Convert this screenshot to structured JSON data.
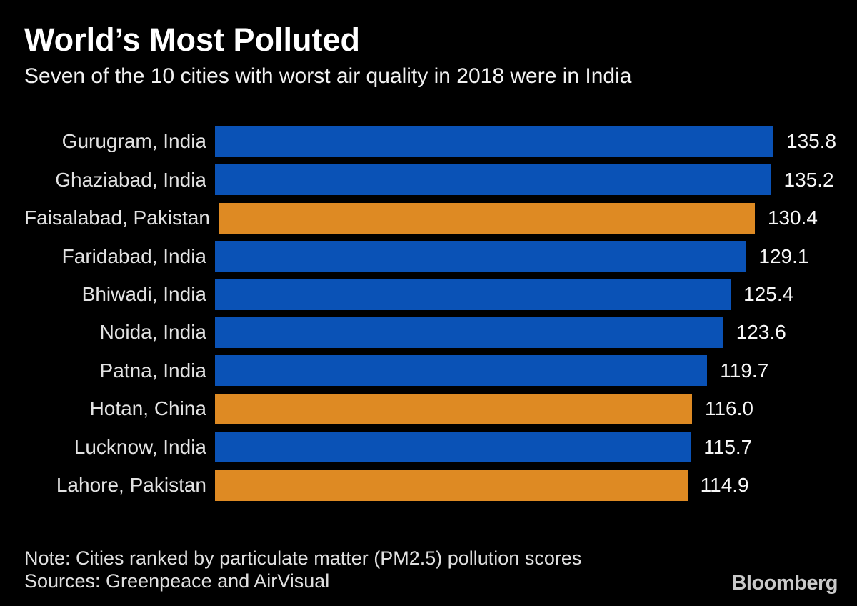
{
  "header": {
    "title": "World’s Most Polluted",
    "subtitle": "Seven of the 10 cities with worst air quality in 2018 were in India"
  },
  "chart_data": {
    "type": "bar",
    "orientation": "horizontal",
    "title": "World’s Most Polluted",
    "subtitle": "Seven of the 10 cities with worst air quality in 2018 were in India",
    "xlim": [
      0,
      135.8
    ],
    "grid": false,
    "legend": false,
    "value_labels_position": "end-of-bar",
    "colors": {
      "india": "#0a52b6",
      "non_india": "#de8a23"
    },
    "categories": [
      "Gurugram, India",
      "Ghaziabad, India",
      "Faisalabad, Pakistan",
      "Faridabad, India",
      "Bhiwadi, India",
      "Noida, India",
      "Patna, India",
      "Hotan, China",
      "Lucknow, India",
      "Lahore, Pakistan"
    ],
    "values": [
      135.8,
      135.2,
      130.4,
      129.1,
      125.4,
      123.6,
      119.7,
      116.0,
      115.7,
      114.9
    ],
    "rows": [
      {
        "label": "Gurugram, India",
        "value": 135.8,
        "value_label": "135.8",
        "color": "#0a52b6"
      },
      {
        "label": "Ghaziabad, India",
        "value": 135.2,
        "value_label": "135.2",
        "color": "#0a52b6"
      },
      {
        "label": "Faisalabad, Pakistan",
        "value": 130.4,
        "value_label": "130.4",
        "color": "#de8a23"
      },
      {
        "label": "Faridabad, India",
        "value": 129.1,
        "value_label": "129.1",
        "color": "#0a52b6"
      },
      {
        "label": "Bhiwadi, India",
        "value": 125.4,
        "value_label": "125.4",
        "color": "#0a52b6"
      },
      {
        "label": "Noida, India",
        "value": 123.6,
        "value_label": "123.6",
        "color": "#0a52b6"
      },
      {
        "label": "Patna, India",
        "value": 119.7,
        "value_label": "119.7",
        "color": "#0a52b6"
      },
      {
        "label": "Hotan, China",
        "value": 116.0,
        "value_label": "116.0",
        "color": "#de8a23"
      },
      {
        "label": "Lucknow, India",
        "value": 115.7,
        "value_label": "115.7",
        "color": "#0a52b6"
      },
      {
        "label": "Lahore, Pakistan",
        "value": 114.9,
        "value_label": "114.9",
        "color": "#de8a23"
      }
    ]
  },
  "footer": {
    "note": "Note: Cities ranked by particulate matter (PM2.5) pollution scores",
    "sources": "Sources: Greenpeace and AirVisual",
    "brand": "Bloomberg"
  }
}
